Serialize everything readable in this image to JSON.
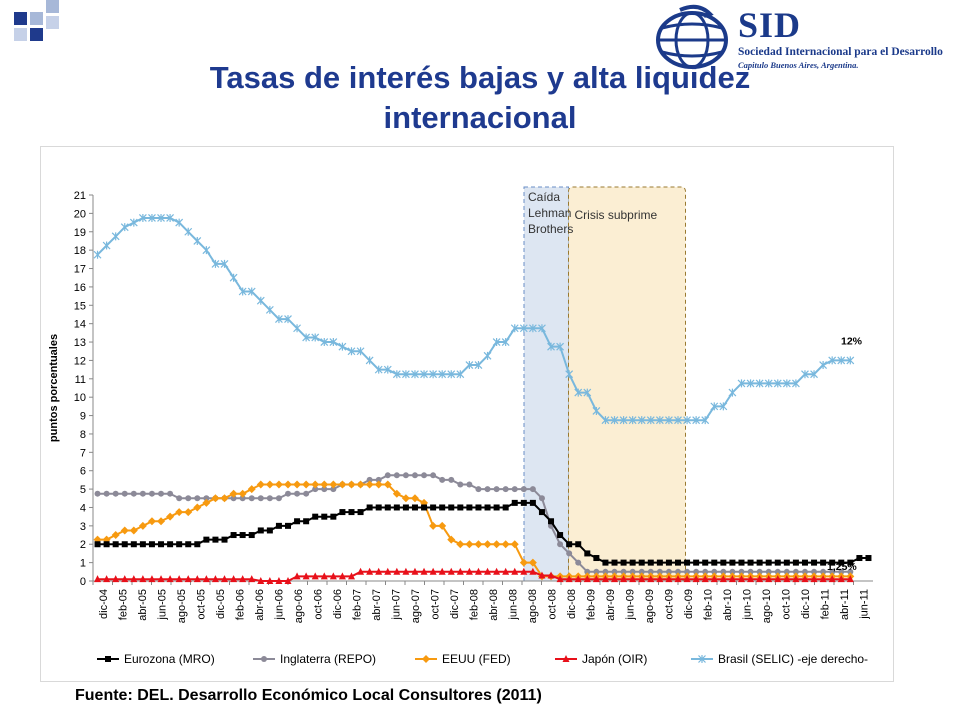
{
  "header": {
    "title_line1": "Tasas de interés bajas y alta liquidez",
    "title_line2": "internacional"
  },
  "logo": {
    "word": "SID",
    "line1": "Sociedad Internacional para el Desarrollo",
    "line2": "Capitulo Buenos Aires, Argentina."
  },
  "footer": {
    "source": "Fuente: DEL. Desarrollo Económico Local Consultores (2011)"
  },
  "colors": {
    "title": "#1e3a8f",
    "eurozona": "#000000",
    "inglaterra": "#8c8a98",
    "eeuu": "#f79a10",
    "japon": "#e8101a",
    "brasil": "#79b8dd",
    "lehman_band": "#dde6f2",
    "subprime_band": "#fbeed3"
  },
  "chart_data": {
    "type": "line",
    "ylabel": "puntos porcentuales",
    "ylim": [
      0,
      21
    ],
    "yticks": [
      "0",
      "1",
      "2",
      "3",
      "4",
      "5",
      "6",
      "7",
      "8",
      "9",
      "10",
      "11",
      "12",
      "13",
      "14",
      "15",
      "16",
      "17",
      "18",
      "19",
      "20",
      "21"
    ],
    "x_labels": [
      "dic-04",
      "feb-05",
      "abr-05",
      "jun-05",
      "ago-05",
      "oct-05",
      "dic-05",
      "feb-06",
      "abr-06",
      "jun-06",
      "ago-06",
      "oct-06",
      "dic-06",
      "feb-07",
      "abr-07",
      "jun-07",
      "ago-07",
      "oct-07",
      "dic-07",
      "feb-08",
      "abr-08",
      "jun-08",
      "ago-08",
      "oct-08",
      "dic-08",
      "feb-09",
      "abr-09",
      "jun-09",
      "ago-09",
      "oct-09",
      "dic-09",
      "feb-10",
      "abr-10",
      "jun-10",
      "ago-10",
      "oct-10",
      "dic-10",
      "feb-11",
      "abr-11",
      "jun-11"
    ],
    "grid": false,
    "legend_position": "bottom",
    "shaded_periods": [
      {
        "label": "Caída Lehman Brothers",
        "from": "ago-08",
        "to": "ene-09"
      },
      {
        "label": "Crisis subprime",
        "from": "ene-09",
        "to": "dic-09"
      }
    ],
    "annotations": [
      {
        "text": "12%",
        "series": "Brasil (SELIC) -eje derecho-",
        "x": "may-11",
        "y": 12
      },
      {
        "text": "1,25%",
        "series": "Eurozona (MRO)",
        "x": "may-11",
        "y": 1.25
      }
    ],
    "series": [
      {
        "name": "Eurozona (MRO)",
        "marker": "square",
        "values": [
          2,
          2,
          2,
          2,
          2,
          2,
          2,
          2,
          2,
          2,
          2,
          2,
          2.25,
          2.25,
          2.25,
          2.5,
          2.5,
          2.5,
          2.75,
          2.75,
          3,
          3,
          3.25,
          3.25,
          3.5,
          3.5,
          3.5,
          3.75,
          3.75,
          3.75,
          4,
          4,
          4,
          4,
          4,
          4,
          4,
          4,
          4,
          4,
          4,
          4,
          4,
          4,
          4,
          4,
          4.25,
          4.25,
          4.25,
          3.75,
          3.25,
          2.5,
          2,
          2,
          1.5,
          1.25,
          1,
          1,
          1,
          1,
          1,
          1,
          1,
          1,
          1,
          1,
          1,
          1,
          1,
          1,
          1,
          1,
          1,
          1,
          1,
          1,
          1,
          1,
          1,
          1,
          1,
          1,
          1,
          1,
          1.25,
          1.25
        ]
      },
      {
        "name": "Inglaterra (REPO)",
        "marker": "circle",
        "values": [
          4.75,
          4.75,
          4.75,
          4.75,
          4.75,
          4.75,
          4.75,
          4.75,
          4.75,
          4.5,
          4.5,
          4.5,
          4.5,
          4.5,
          4.5,
          4.5,
          4.5,
          4.5,
          4.5,
          4.5,
          4.5,
          4.75,
          4.75,
          4.75,
          5,
          5,
          5,
          5.25,
          5.25,
          5.25,
          5.5,
          5.5,
          5.75,
          5.75,
          5.75,
          5.75,
          5.75,
          5.75,
          5.5,
          5.5,
          5.25,
          5.25,
          5,
          5,
          5,
          5,
          5,
          5,
          5,
          4.5,
          3,
          2,
          1.5,
          1,
          0.5,
          0.5,
          0.5,
          0.5,
          0.5,
          0.5,
          0.5,
          0.5,
          0.5,
          0.5,
          0.5,
          0.5,
          0.5,
          0.5,
          0.5,
          0.5,
          0.5,
          0.5,
          0.5,
          0.5,
          0.5,
          0.5,
          0.5,
          0.5,
          0.5,
          0.5,
          0.5,
          0.5,
          0.5,
          0.5
        ]
      },
      {
        "name": "EEUU (FED)",
        "marker": "diamond",
        "values": [
          2.25,
          2.25,
          2.5,
          2.75,
          2.75,
          3,
          3.25,
          3.25,
          3.5,
          3.75,
          3.75,
          4,
          4.25,
          4.5,
          4.5,
          4.75,
          4.75,
          5,
          5.25,
          5.25,
          5.25,
          5.25,
          5.25,
          5.25,
          5.25,
          5.25,
          5.25,
          5.25,
          5.25,
          5.25,
          5.25,
          5.25,
          5.25,
          4.75,
          4.5,
          4.5,
          4.25,
          3,
          3,
          2.25,
          2,
          2,
          2,
          2,
          2,
          2,
          2,
          1,
          1,
          0.25,
          0.25,
          0.25,
          0.25,
          0.25,
          0.25,
          0.25,
          0.25,
          0.25,
          0.25,
          0.25,
          0.25,
          0.25,
          0.25,
          0.25,
          0.25,
          0.25,
          0.25,
          0.25,
          0.25,
          0.25,
          0.25,
          0.25,
          0.25,
          0.25,
          0.25,
          0.25,
          0.25,
          0.25,
          0.25,
          0.25,
          0.25,
          0.25,
          0.25,
          0.25
        ]
      },
      {
        "name": "Japón (OIR)",
        "marker": "triangle",
        "values": [
          0.1,
          0.1,
          0.1,
          0.1,
          0.1,
          0.1,
          0.1,
          0.1,
          0.1,
          0.1,
          0.1,
          0.1,
          0.1,
          0.1,
          0.1,
          0.1,
          0.1,
          0.1,
          0,
          0,
          0,
          0,
          0.25,
          0.25,
          0.25,
          0.25,
          0.25,
          0.25,
          0.25,
          0.5,
          0.5,
          0.5,
          0.5,
          0.5,
          0.5,
          0.5,
          0.5,
          0.5,
          0.5,
          0.5,
          0.5,
          0.5,
          0.5,
          0.5,
          0.5,
          0.5,
          0.5,
          0.5,
          0.5,
          0.3,
          0.3,
          0.1,
          0.1,
          0.1,
          0.1,
          0.1,
          0.1,
          0.1,
          0.1,
          0.1,
          0.1,
          0.1,
          0.1,
          0.1,
          0.1,
          0.1,
          0.1,
          0.1,
          0.1,
          0.1,
          0.1,
          0.1,
          0.1,
          0.1,
          0.1,
          0.1,
          0.1,
          0.1,
          0.1,
          0.1,
          0.1,
          0.1,
          0.1,
          0.1
        ]
      },
      {
        "name": "Brasil (SELIC) -eje derecho-",
        "marker": "asterisk",
        "values": [
          17.75,
          18.25,
          18.75,
          19.25,
          19.5,
          19.75,
          19.75,
          19.75,
          19.75,
          19.5,
          19,
          18.5,
          18,
          17.25,
          17.25,
          16.5,
          15.75,
          15.75,
          15.25,
          14.75,
          14.25,
          14.25,
          13.75,
          13.25,
          13.25,
          13,
          13,
          12.75,
          12.5,
          12.5,
          12,
          11.5,
          11.5,
          11.25,
          11.25,
          11.25,
          11.25,
          11.25,
          11.25,
          11.25,
          11.25,
          11.75,
          11.75,
          12.25,
          13,
          13,
          13.75,
          13.75,
          13.75,
          13.75,
          12.75,
          12.75,
          11.25,
          10.25,
          10.25,
          9.25,
          8.75,
          8.75,
          8.75,
          8.75,
          8.75,
          8.75,
          8.75,
          8.75,
          8.75,
          8.75,
          8.75,
          8.75,
          9.5,
          9.5,
          10.25,
          10.75,
          10.75,
          10.75,
          10.75,
          10.75,
          10.75,
          10.75,
          11.25,
          11.25,
          11.75,
          12,
          12,
          12
        ]
      }
    ]
  }
}
